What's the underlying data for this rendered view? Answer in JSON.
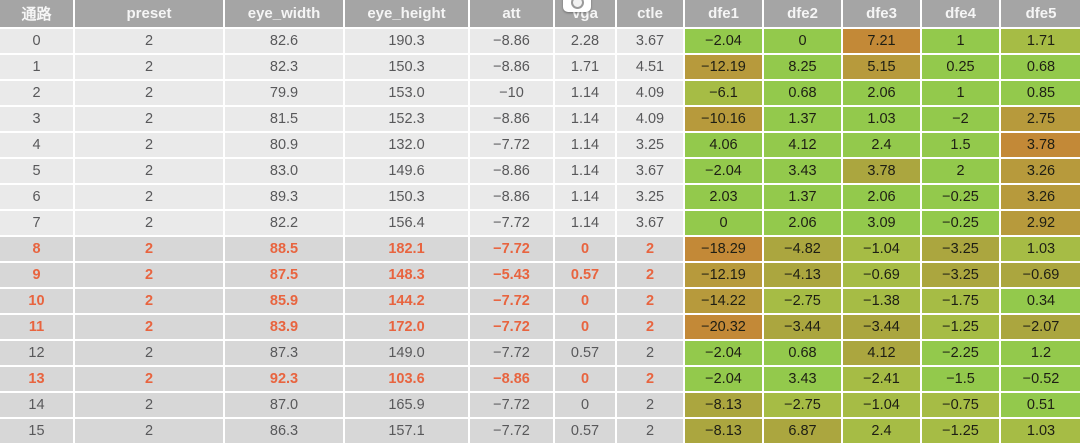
{
  "table": {
    "columns": [
      {
        "key": "channel",
        "label": "通路"
      },
      {
        "key": "preset",
        "label": "preset"
      },
      {
        "key": "eye_width",
        "label": "eye_width"
      },
      {
        "key": "eye_height",
        "label": "eye_height"
      },
      {
        "key": "att",
        "label": "att"
      },
      {
        "key": "vga",
        "label": "vga"
      },
      {
        "key": "ctle",
        "label": "ctle"
      },
      {
        "key": "dfe1",
        "label": "dfe1"
      },
      {
        "key": "dfe2",
        "label": "dfe2"
      },
      {
        "key": "dfe3",
        "label": "dfe3"
      },
      {
        "key": "dfe4",
        "label": "dfe4"
      },
      {
        "key": "dfe5",
        "label": "dfe5"
      }
    ],
    "rows": [
      {
        "cells": [
          "0",
          "2",
          "82.6",
          "190.3",
          "-8.86",
          "2.28",
          "3.67"
        ],
        "dfe": [
          "-2.04",
          "0",
          "7.21",
          "1",
          "1.71"
        ],
        "dfe_colors": [
          "g",
          "g",
          "o",
          "g",
          "gy"
        ],
        "highlight": false
      },
      {
        "cells": [
          "1",
          "2",
          "82.3",
          "150.3",
          "-8.86",
          "1.71",
          "4.51"
        ],
        "dfe": [
          "-12.19",
          "8.25",
          "5.15",
          "0.25",
          "0.68"
        ],
        "dfe_colors": [
          "yo",
          "g",
          "yo",
          "g",
          "g"
        ],
        "highlight": false
      },
      {
        "cells": [
          "2",
          "2",
          "79.9",
          "153.0",
          "-10",
          "1.14",
          "4.09"
        ],
        "dfe": [
          "-6.1",
          "0.68",
          "2.06",
          "1",
          "0.85"
        ],
        "dfe_colors": [
          "gy",
          "g",
          "g",
          "g",
          "g"
        ],
        "highlight": false
      },
      {
        "cells": [
          "3",
          "2",
          "81.5",
          "152.3",
          "-8.86",
          "1.14",
          "4.09"
        ],
        "dfe": [
          "-10.16",
          "1.37",
          "1.03",
          "-2",
          "2.75"
        ],
        "dfe_colors": [
          "yo",
          "g",
          "g",
          "g",
          "yo"
        ],
        "highlight": false
      },
      {
        "cells": [
          "4",
          "2",
          "80.9",
          "132.0",
          "-7.72",
          "1.14",
          "3.25"
        ],
        "dfe": [
          "4.06",
          "4.12",
          "2.4",
          "1.5",
          "3.78"
        ],
        "dfe_colors": [
          "g",
          "g",
          "g",
          "g",
          "o"
        ],
        "highlight": false
      },
      {
        "cells": [
          "5",
          "2",
          "83.0",
          "149.6",
          "-8.86",
          "1.14",
          "3.67"
        ],
        "dfe": [
          "-2.04",
          "3.43",
          "3.78",
          "2",
          "3.26"
        ],
        "dfe_colors": [
          "g",
          "g",
          "y",
          "g",
          "yo"
        ],
        "highlight": false
      },
      {
        "cells": [
          "6",
          "2",
          "89.3",
          "150.3",
          "-8.86",
          "1.14",
          "3.25"
        ],
        "dfe": [
          "2.03",
          "1.37",
          "2.06",
          "-0.25",
          "3.26"
        ],
        "dfe_colors": [
          "g",
          "g",
          "g",
          "g",
          "yo"
        ],
        "highlight": false
      },
      {
        "cells": [
          "7",
          "2",
          "82.2",
          "156.4",
          "-7.72",
          "1.14",
          "3.67"
        ],
        "dfe": [
          "0",
          "2.06",
          "3.09",
          "-0.25",
          "2.92"
        ],
        "dfe_colors": [
          "g",
          "g",
          "g",
          "g",
          "yo"
        ],
        "highlight": false
      },
      {
        "cells": [
          "8",
          "2",
          "88.5",
          "182.1",
          "-7.72",
          "0",
          "2"
        ],
        "dfe": [
          "-18.29",
          "-4.82",
          "-1.04",
          "-3.25",
          "1.03"
        ],
        "dfe_colors": [
          "o",
          "y",
          "gy",
          "y",
          "gy"
        ],
        "highlight": true
      },
      {
        "cells": [
          "9",
          "2",
          "87.5",
          "148.3",
          "-5.43",
          "0.57",
          "2"
        ],
        "dfe": [
          "-12.19",
          "-4.13",
          "-0.69",
          "-3.25",
          "-0.69"
        ],
        "dfe_colors": [
          "yo",
          "y",
          "gy",
          "y",
          "y"
        ],
        "highlight": true
      },
      {
        "cells": [
          "10",
          "2",
          "85.9",
          "144.2",
          "-7.72",
          "0",
          "2"
        ],
        "dfe": [
          "-14.22",
          "-2.75",
          "-1.38",
          "-1.75",
          "0.34"
        ],
        "dfe_colors": [
          "yo",
          "gy",
          "gy",
          "gy",
          "g"
        ],
        "highlight": true
      },
      {
        "cells": [
          "11",
          "2",
          "83.9",
          "172.0",
          "-7.72",
          "0",
          "2"
        ],
        "dfe": [
          "-20.32",
          "-3.44",
          "-3.44",
          "-1.25",
          "-2.07"
        ],
        "dfe_colors": [
          "o",
          "y",
          "y",
          "gy",
          "y"
        ],
        "highlight": true
      },
      {
        "cells": [
          "12",
          "2",
          "87.3",
          "149.0",
          "-7.72",
          "0.57",
          "2"
        ],
        "dfe": [
          "-2.04",
          "0.68",
          "4.12",
          "-2.25",
          "1.2"
        ],
        "dfe_colors": [
          "g",
          "g",
          "y",
          "g",
          "g"
        ],
        "highlight": false
      },
      {
        "cells": [
          "13",
          "2",
          "92.3",
          "103.6",
          "-8.86",
          "0",
          "2"
        ],
        "dfe": [
          "-2.04",
          "3.43",
          "-2.41",
          "-1.5",
          "-0.52"
        ],
        "dfe_colors": [
          "g",
          "g",
          "gy",
          "g",
          "g"
        ],
        "highlight": true
      },
      {
        "cells": [
          "14",
          "2",
          "87.0",
          "165.9",
          "-7.72",
          "0",
          "2"
        ],
        "dfe": [
          "-8.13",
          "-2.75",
          "-1.04",
          "-0.75",
          "0.51"
        ],
        "dfe_colors": [
          "y",
          "gy",
          "gy",
          "gy",
          "g"
        ],
        "highlight": false
      },
      {
        "cells": [
          "15",
          "2",
          "86.3",
          "157.1",
          "-7.72",
          "0.57",
          "2"
        ],
        "dfe": [
          "-8.13",
          "6.87",
          "2.4",
          "-1.25",
          "1.03"
        ],
        "dfe_colors": [
          "y",
          "y",
          "gy",
          "gy",
          "gy"
        ],
        "highlight": false
      }
    ],
    "colors": {
      "header_bg": "#a5a5a5",
      "header_text": "#f5f5f5",
      "row_light_bg": "#eaeaea",
      "row_dark_bg": "#d7d7d7",
      "gridline": "#ffffff",
      "text_normal": "#58585a",
      "text_highlight": "#e8643f",
      "dfe_text": "#1e1e14",
      "palette": {
        "g": "#93c94c",
        "gy": "#a6bc45",
        "y": "#aba63f",
        "yo": "#b79a3c",
        "o": "#c38937"
      }
    },
    "dark_rows_start": 8
  },
  "floating_control": {
    "name": "circle-button-badge"
  }
}
